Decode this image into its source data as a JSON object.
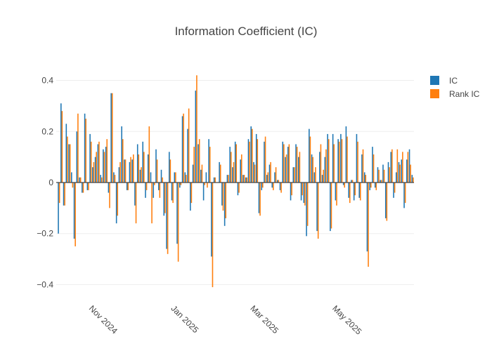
{
  "chart_data": {
    "type": "bar",
    "title": "Information Coefficient (IC)",
    "xlabel": "",
    "ylabel": "",
    "x_start": "2024-10-10",
    "x_end": "2025-06-30",
    "xlim": [
      "2024-10-08",
      "2025-07-01"
    ],
    "ylim": [
      -0.44,
      0.44
    ],
    "yticks": [
      -0.4,
      -0.2,
      0,
      0.2,
      0.4
    ],
    "ytick_labels": [
      "−0.4",
      "−0.2",
      "0",
      "0.2",
      "0.4"
    ],
    "xticks": [
      "2024-11-01",
      "2025-01-01",
      "2025-03-01",
      "2025-05-01"
    ],
    "xtick_labels": [
      "Nov 2024",
      "Jan 2025",
      "Mar 2025",
      "May 2025"
    ],
    "grid": true,
    "legend_position": "top-right",
    "series": [
      {
        "name": "IC",
        "color": "#1f77b4",
        "values": [
          -0.2,
          0.31,
          -0.09,
          0.23,
          0.15,
          0.04,
          -0.22,
          0.2,
          0.02,
          -0.04,
          0.27,
          -0.03,
          0.19,
          0.06,
          0.1,
          0.15,
          0.03,
          0.13,
          0.14,
          -0.04,
          0.35,
          0.04,
          -0.16,
          0.06,
          0.22,
          0.09,
          -0.03,
          0.08,
          0.09,
          -0.09,
          0.15,
          0.05,
          0.16,
          -0.06,
          0.11,
          0.04,
          -0.06,
          0.13,
          -0.03,
          0.05,
          -0.13,
          -0.26,
          0.12,
          -0.07,
          0.04,
          -0.24,
          -0.02,
          0.26,
          0.04,
          0.21,
          -0.11,
          0.07,
          0.36,
          0.15,
          0.05,
          -0.07,
          0.04,
          0.17,
          -0.29,
          0.02,
          0.0,
          0.08,
          -0.09,
          -0.17,
          0.03,
          0.14,
          0.06,
          0.16,
          -0.05,
          0.09,
          0.03,
          0.02,
          0.17,
          0.22,
          0.08,
          0.19,
          -0.12,
          -0.03,
          0.16,
          0.03,
          0.07,
          -0.02,
          0.04,
          0.01,
          -0.03,
          0.16,
          0.1,
          0.14,
          -0.07,
          0.06,
          0.15,
          0.1,
          -0.07,
          -0.08,
          -0.21,
          0.21,
          0.11,
          0.04,
          -0.19,
          0.12,
          0.03,
          0.1,
          0.19,
          -0.19,
          0.19,
          -0.07,
          0.17,
          0.19,
          -0.01,
          0.22,
          -0.06,
          0.01,
          -0.07,
          0.19,
          -0.06,
          0.11,
          0.04,
          -0.27,
          -0.03,
          0.14,
          -0.02,
          0.06,
          0.01,
          0.07,
          -0.14,
          0.08,
          0.12,
          -0.06,
          0.04,
          0.08,
          0.09,
          -0.1,
          0.09,
          0.13,
          0.03
        ]
      },
      {
        "name": "Rank IC",
        "color": "#ff7f0e",
        "values": [
          -0.08,
          0.28,
          -0.09,
          0.18,
          0.15,
          -0.02,
          -0.25,
          0.27,
          0.02,
          -0.04,
          0.25,
          -0.03,
          0.16,
          0.08,
          0.12,
          0.16,
          0.02,
          0.12,
          0.17,
          -0.1,
          0.35,
          0.03,
          -0.13,
          0.08,
          0.17,
          0.09,
          -0.03,
          0.1,
          0.11,
          -0.16,
          0.11,
          0.06,
          0.12,
          -0.03,
          0.22,
          -0.16,
          -0.01,
          0.09,
          -0.06,
          0.02,
          -0.12,
          -0.28,
          0.09,
          -0.08,
          0.04,
          -0.31,
          -0.01,
          0.27,
          0.03,
          0.29,
          -0.08,
          0.14,
          0.42,
          0.17,
          0.07,
          -0.01,
          -0.02,
          0.14,
          -0.41,
          0.02,
          0.0,
          0.07,
          -0.11,
          -0.14,
          0.03,
          0.12,
          0.08,
          0.15,
          -0.04,
          0.11,
          0.03,
          0.02,
          0.16,
          0.21,
          0.07,
          0.17,
          -0.13,
          -0.02,
          0.18,
          0.04,
          0.08,
          -0.03,
          0.06,
          0.01,
          -0.04,
          0.15,
          0.11,
          0.15,
          -0.05,
          0.06,
          0.14,
          0.12,
          -0.05,
          -0.09,
          -0.17,
          0.18,
          0.1,
          0.06,
          -0.22,
          0.15,
          0.05,
          0.13,
          0.17,
          -0.18,
          0.15,
          -0.09,
          0.16,
          0.17,
          -0.02,
          0.18,
          -0.08,
          0.01,
          -0.05,
          0.16,
          -0.07,
          0.13,
          0.03,
          -0.33,
          -0.02,
          0.11,
          -0.03,
          0.05,
          0.01,
          0.05,
          -0.15,
          0.06,
          0.13,
          -0.04,
          0.13,
          0.07,
          0.12,
          -0.08,
          0.12,
          0.07,
          0.02
        ]
      }
    ]
  }
}
